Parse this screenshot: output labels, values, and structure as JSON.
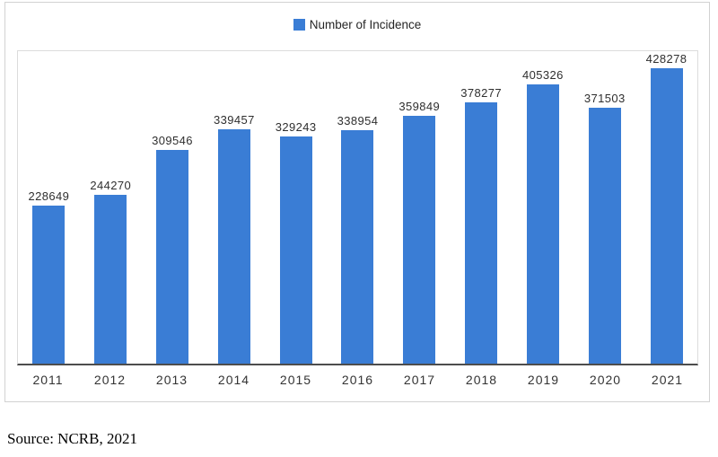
{
  "chart_data": {
    "type": "bar",
    "title": "",
    "legend": "Number of Incidence",
    "legend_position": "top-center",
    "categories": [
      "2011",
      "2012",
      "2013",
      "2014",
      "2015",
      "2016",
      "2017",
      "2018",
      "2019",
      "2020",
      "2021"
    ],
    "series": [
      {
        "name": "Number of Incidence",
        "values": [
          228649,
          244270,
          309546,
          339457,
          329243,
          338954,
          359849,
          378277,
          405326,
          371503,
          428278
        ]
      }
    ],
    "data_labels": true,
    "grid": false,
    "xlabel": "",
    "ylabel": "",
    "ylim": [
      0,
      455000
    ],
    "y_axis_labels_visible": false,
    "bar_color": "#3a7dd5",
    "axis_line_color": "#4d4d4d",
    "border_color": "#d2d2d2"
  },
  "source_note": "Source: NCRB, 2021"
}
